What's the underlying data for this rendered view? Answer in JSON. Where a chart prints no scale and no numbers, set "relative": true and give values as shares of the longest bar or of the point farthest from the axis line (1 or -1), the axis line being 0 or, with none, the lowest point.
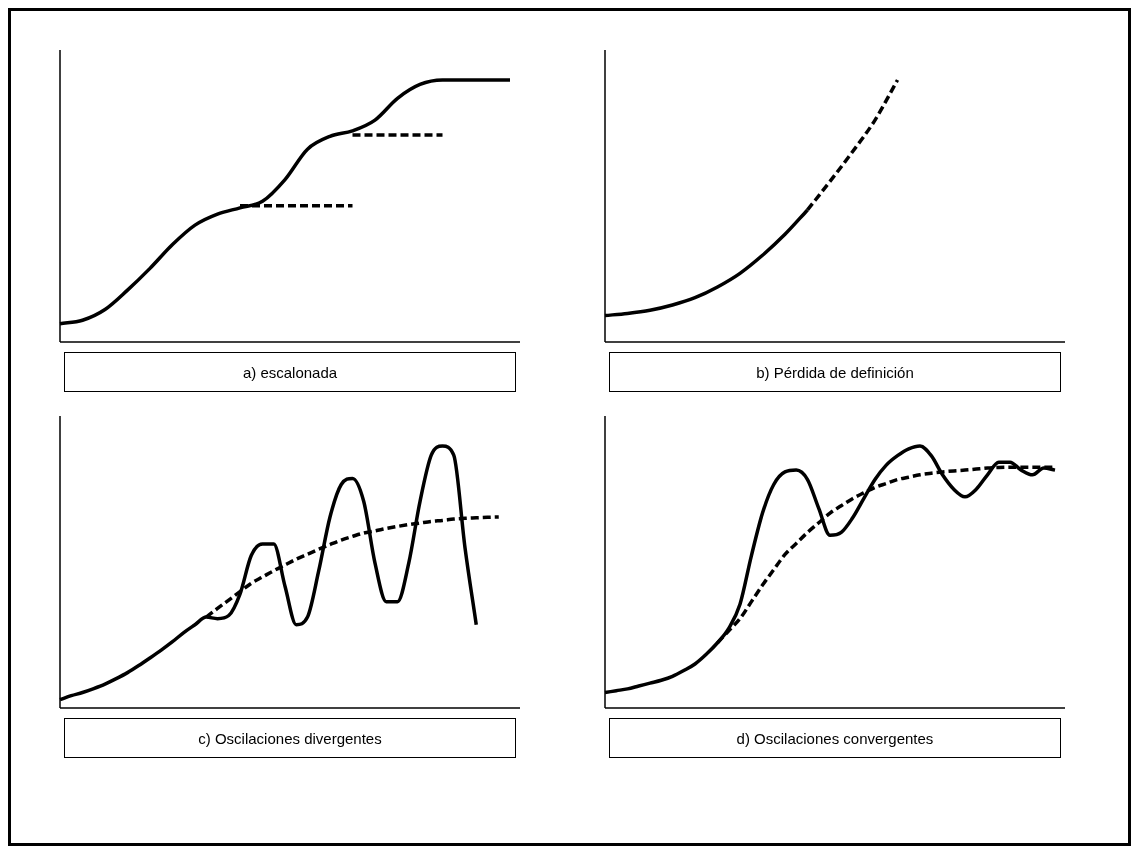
{
  "chart_data": [
    {
      "type": "line",
      "title": "a) escalonada",
      "relative": true,
      "legend": false,
      "marker": "none",
      "categories": [
        null,
        null,
        null,
        null,
        null,
        null,
        null,
        null,
        null,
        null,
        null,
        null,
        null,
        null,
        null,
        null,
        null,
        null,
        null,
        null,
        null
      ],
      "series": [
        {
          "color": "#000000",
          "line_style": "solid",
          "values": [
            0.07,
            0.083,
            0.124,
            0.198,
            0.281,
            0.372,
            0.446,
            0.488,
            0.512,
            0.537,
            0.62,
            0.736,
            0.785,
            0.806,
            0.847,
            0.93,
            0.983,
            1,
            1,
            1,
            1
          ]
        },
        {
          "color": "#000000",
          "line_style": "dashed",
          "values": [
            null,
            null,
            null,
            null,
            null,
            null,
            null,
            null,
            0.52,
            0.52,
            0.52,
            0.52,
            0.52,
            0.52,
            null,
            null,
            null,
            null,
            null,
            null,
            null
          ]
        },
        {
          "color": "#000000",
          "line_style": "dashed",
          "values": [
            null,
            null,
            null,
            null,
            null,
            null,
            null,
            null,
            null,
            null,
            null,
            null,
            null,
            0.79,
            0.79,
            0.79,
            0.79,
            0.79,
            null,
            null,
            null
          ]
        }
      ]
    },
    {
      "type": "line",
      "title": "b) Pérdida de definición",
      "relative": true,
      "legend": false,
      "marker": "none",
      "categories": [
        null,
        null,
        null,
        null,
        null,
        null,
        null,
        null,
        null,
        null,
        null,
        null,
        null,
        null,
        null,
        null,
        null,
        null,
        null,
        null,
        null
      ],
      "series": [
        {
          "color": "#000000",
          "line_style": "solid",
          "values": [
            0.101,
            0.109,
            0.121,
            0.141,
            0.169,
            0.21,
            0.262,
            0.331,
            0.411,
            0.504,
            null,
            null,
            null,
            null,
            null,
            null,
            null,
            null,
            null,
            null,
            null
          ]
        },
        {
          "color": "#000000",
          "line_style": "dashed",
          "values": [
            null,
            null,
            null,
            null,
            null,
            null,
            null,
            null,
            null,
            0.504,
            0.613,
            0.726,
            0.847,
            1,
            null,
            null,
            null,
            null,
            null,
            null,
            null
          ]
        }
      ]
    },
    {
      "type": "line",
      "title": "c) Oscilaciones divergentes",
      "relative": true,
      "legend": false,
      "marker": "none",
      "categories": [
        null,
        null,
        null,
        null,
        null,
        null,
        null,
        null,
        null,
        null,
        null,
        null,
        null,
        null,
        null,
        null,
        null,
        null,
        null,
        null,
        null,
        null,
        null,
        null,
        null,
        null,
        null,
        null,
        null,
        null,
        null,
        null,
        null,
        null,
        null,
        null,
        null,
        null,
        null,
        null,
        null
      ],
      "series": [
        {
          "color": "#000000",
          "line_style": "solid",
          "values": [
            0.032,
            0.047,
            0.059,
            0.074,
            0.091,
            0.112,
            0.135,
            0.162,
            0.191,
            0.221,
            0.253,
            0.288,
            0.318,
            0.347,
            0.341,
            0.353,
            0.435,
            0.582,
            0.626,
            0.626,
            0.465,
            0.318,
            0.347,
            0.524,
            0.729,
            0.853,
            0.876,
            0.788,
            0.553,
            0.406,
            0.406,
            0.553,
            0.788,
            0.965,
            1,
            0.965,
            0.612,
            0.318,
            null,
            null,
            null
          ]
        },
        {
          "color": "#000000",
          "line_style": "dashed",
          "values": [
            null,
            null,
            null,
            null,
            null,
            null,
            null,
            null,
            null,
            null,
            null,
            null,
            null,
            0.347,
            0.38,
            0.412,
            0.444,
            0.476,
            0.5,
            0.524,
            0.546,
            0.568,
            0.587,
            0.606,
            0.624,
            0.641,
            0.655,
            0.668,
            0.676,
            0.685,
            0.693,
            0.7,
            0.706,
            0.712,
            0.716,
            0.721,
            0.724,
            0.726,
            0.728,
            0.729,
            null
          ]
        }
      ]
    },
    {
      "type": "line",
      "title": "d) Oscilaciones convergentes",
      "relative": true,
      "legend": false,
      "marker": "none",
      "categories": [
        null,
        null,
        null,
        null,
        null,
        null,
        null,
        null,
        null,
        null,
        null,
        null,
        null,
        null,
        null,
        null,
        null,
        null,
        null,
        null,
        null,
        null,
        null,
        null,
        null,
        null,
        null,
        null,
        null,
        null,
        null,
        null,
        null,
        null,
        null,
        null,
        null,
        null,
        null,
        null,
        null
      ],
      "series": [
        {
          "color": "#000000",
          "line_style": "solid",
          "values": [
            0.059,
            0.066,
            0.073,
            0.084,
            0.095,
            0.106,
            0.121,
            0.143,
            0.168,
            0.205,
            0.249,
            0.304,
            0.396,
            0.579,
            0.744,
            0.853,
            0.901,
            0.908,
            0.872,
            0.762,
            0.659,
            0.67,
            0.725,
            0.799,
            0.872,
            0.927,
            0.963,
            0.989,
            1,
            0.963,
            0.89,
            0.835,
            0.806,
            0.835,
            0.89,
            0.938,
            0.938,
            0.908,
            0.89,
            0.916,
            0.908
          ]
        },
        {
          "color": "#000000",
          "line_style": "dashed",
          "values": [
            null,
            null,
            null,
            null,
            null,
            null,
            null,
            null,
            null,
            null,
            0.249,
            0.295,
            0.341,
            0.405,
            0.469,
            0.528,
            0.586,
            0.628,
            0.67,
            0.707,
            0.744,
            0.772,
            0.799,
            0.821,
            0.842,
            0.857,
            0.872,
            0.881,
            0.89,
            0.896,
            0.901,
            0.905,
            0.908,
            0.912,
            0.916,
            0.918,
            0.919,
            0.919,
            0.919,
            0.919,
            0.919
          ]
        }
      ]
    }
  ]
}
